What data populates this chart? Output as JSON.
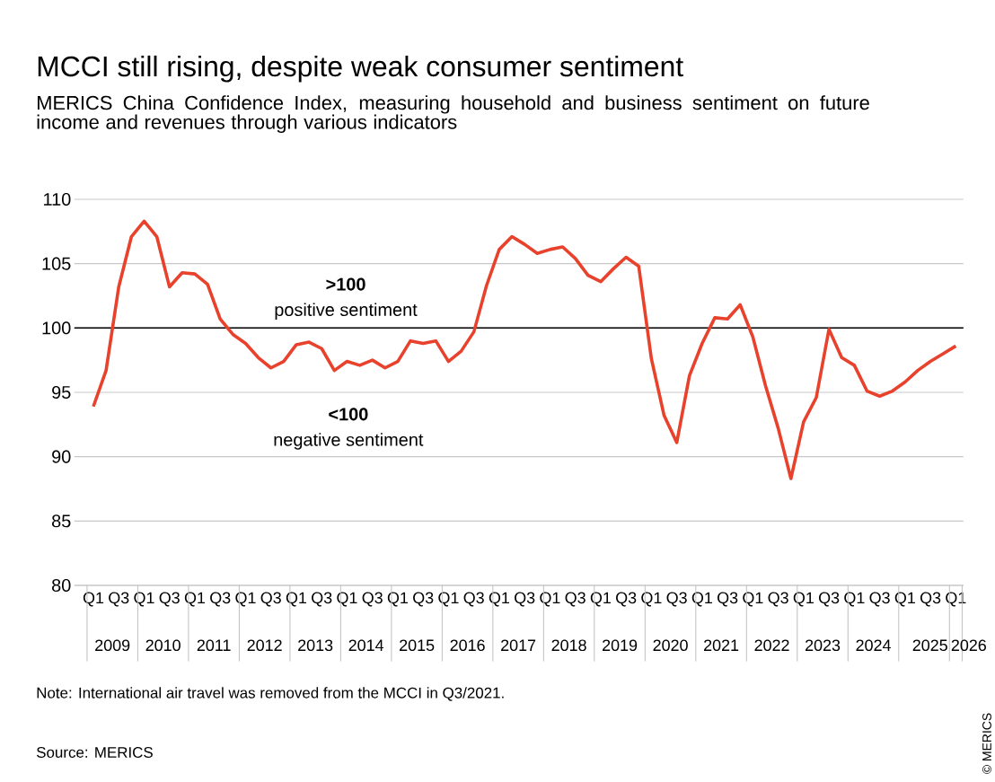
{
  "chart_data": {
    "type": "line",
    "title": "MCCI still rising, despite weak consumer sentiment",
    "subtitle": "MERICS China Confidence Index, measuring household and business sentiment on future income and revenues through various indicators",
    "categories": [
      "Q1",
      null,
      "Q3",
      null,
      "Q1",
      null,
      "Q3",
      null,
      "Q1",
      null,
      "Q3",
      null,
      "Q1",
      null,
      "Q3",
      null,
      "Q1",
      null,
      "Q3",
      null,
      "Q1",
      null,
      "Q3",
      null,
      "Q1",
      null,
      "Q3",
      null,
      "Q1",
      null,
      "Q3",
      null,
      "Q1",
      null,
      "Q3",
      null,
      "Q1",
      null,
      "Q3",
      null,
      "Q1",
      null,
      "Q3",
      null,
      "Q1",
      null,
      "Q3",
      null,
      "Q1",
      null,
      "Q3",
      null,
      "Q1",
      null,
      "Q3",
      null,
      "Q1",
      null,
      "Q3",
      null,
      "Q1",
      null,
      "Q3",
      null,
      "Q1",
      null,
      "Q3",
      null,
      "Q1"
    ],
    "series": [
      {
        "color": "#e8412c",
        "values": [
          93.9,
          96.7,
          103.2,
          107.1,
          108.3,
          107.1,
          103.2,
          104.3,
          104.2,
          103.4,
          100.7,
          99.5,
          98.8,
          97.7,
          96.9,
          97.4,
          98.7,
          98.9,
          98.4,
          96.7,
          97.4,
          97.1,
          97.5,
          96.9,
          97.4,
          99.0,
          98.8,
          99.0,
          97.4,
          98.2,
          99.7,
          103.3,
          106.1,
          107.1,
          106.5,
          105.8,
          106.1,
          106.3,
          105.4,
          104.1,
          103.6,
          104.6,
          105.5,
          104.8,
          97.6,
          93.2,
          91.1,
          96.3,
          98.8,
          100.8,
          100.7,
          101.8,
          99.3,
          95.5,
          92.2,
          88.3,
          92.7,
          94.6,
          99.9,
          97.7,
          97.1,
          95.1,
          94.7,
          95.1,
          95.8,
          96.7,
          97.4,
          98.0,
          98.6
        ]
      }
    ],
    "ylim": [
      80,
      110
    ],
    "yticks": [
      80,
      85,
      90,
      95,
      100,
      105,
      110
    ],
    "grid": "y",
    "ref_lines": [
      {
        "axis": "y",
        "value": 100,
        "label": "positive sentiment",
        "color": "#000000"
      }
    ],
    "annotations": [
      "2009",
      "2010",
      "2011",
      "2012",
      "2013",
      "2014",
      "2015",
      "2016",
      "2017",
      "2018",
      "2019",
      "2020",
      "2021",
      "2022",
      "2023",
      "2024",
      "2025",
      "2026",
      ">100",
      "<100",
      "negative sentiment",
      "Note: International air travel was removed from the MCCI in Q3/2021.",
      "Source: MERICS",
      "© MERICS"
    ]
  }
}
